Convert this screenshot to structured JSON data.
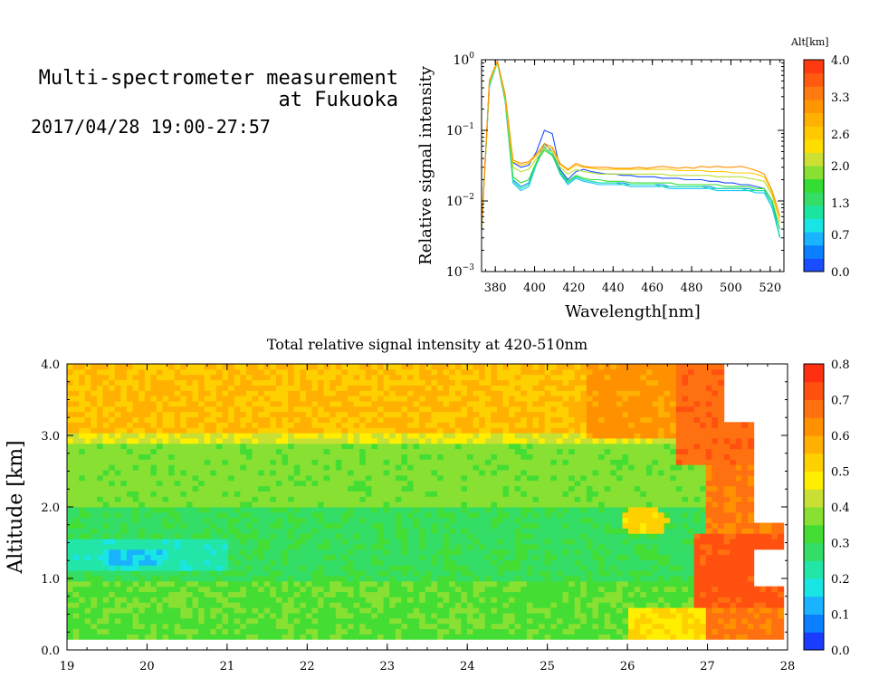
{
  "header": {
    "title_line1": "Multi-spectrometer measurement",
    "title_line2": "at Fukuoka",
    "datetime": "2017/04/28 19:00-27:57"
  },
  "colors": {
    "colorbar_top": [
      "#1a4dff",
      "#0a7fff",
      "#19b3ff",
      "#19e5e5",
      "#1ae5a0",
      "#33dd66",
      "#33dd33",
      "#88e033",
      "#cce033",
      "#ffdd00",
      "#ffc800",
      "#ffb000",
      "#ff9500",
      "#ff7a10",
      "#ff5a10",
      "#ff3a10"
    ],
    "heatmap_scale": [
      "#1a3cff",
      "#0a7fff",
      "#19b3ff",
      "#1ae5e5",
      "#22e5a8",
      "#33dd66",
      "#44dd33",
      "#88e033",
      "#c8e033",
      "#ffee00",
      "#ffd000",
      "#ffb000",
      "#ff9000",
      "#ff7010",
      "#ff5010",
      "#ff3010"
    ]
  },
  "chart_data": [
    {
      "type": "line",
      "xlabel": "Wavelength[nm]",
      "ylabel": "Relative signal intensity",
      "xlim": [
        373,
        527
      ],
      "ylim_log10": [
        -3,
        0
      ],
      "yscale": "log",
      "xticks": [
        380,
        400,
        420,
        440,
        460,
        480,
        500,
        520
      ],
      "xtick_labels": [
        "380",
        "400",
        "420",
        "440",
        "460",
        "480",
        "500",
        "520"
      ],
      "yticks_log10": [
        -3,
        -2,
        -1,
        0
      ],
      "ytick_labels": [
        {
          "base": "10",
          "exp": "−3"
        },
        {
          "base": "10",
          "exp": "−2"
        },
        {
          "base": "10",
          "exp": "−1"
        },
        {
          "base": "10",
          "exp": "0"
        }
      ],
      "colorbar": {
        "label": "Alt[km]",
        "range": [
          0.0,
          4.0
        ],
        "tick_labels": [
          "0.0",
          "0.7",
          "1.3",
          "2.0",
          "2.6",
          "3.3",
          "4.0"
        ],
        "tick_values": [
          0.0,
          0.7,
          1.3,
          2.0,
          2.6,
          3.3,
          4.0
        ]
      },
      "x": [
        373,
        377,
        381,
        385,
        389,
        393,
        397,
        401,
        405,
        409,
        413,
        417,
        421,
        425,
        429,
        433,
        437,
        441,
        445,
        449,
        453,
        457,
        461,
        465,
        469,
        473,
        477,
        481,
        485,
        489,
        493,
        497,
        501,
        505,
        509,
        513,
        517,
        521,
        525
      ],
      "series": [
        {
          "alt": 0.2,
          "color": "#1a4dff",
          "values": [
            0.004,
            0.5,
            0.95,
            0.3,
            0.035,
            0.03,
            0.032,
            0.05,
            0.1,
            0.09,
            0.028,
            0.02,
            0.026,
            0.028,
            0.026,
            0.025,
            0.024,
            0.024,
            0.023,
            0.023,
            0.022,
            0.022,
            0.022,
            0.021,
            0.021,
            0.021,
            0.02,
            0.02,
            0.02,
            0.019,
            0.019,
            0.018,
            0.018,
            0.017,
            0.017,
            0.016,
            0.015,
            0.01,
            0.003
          ]
        },
        {
          "alt": 0.6,
          "color": "#0a8aff",
          "values": [
            0.004,
            0.45,
            0.95,
            0.28,
            0.02,
            0.016,
            0.018,
            0.035,
            0.065,
            0.05,
            0.026,
            0.018,
            0.022,
            0.02,
            0.019,
            0.018,
            0.018,
            0.018,
            0.018,
            0.017,
            0.017,
            0.017,
            0.017,
            0.017,
            0.016,
            0.016,
            0.016,
            0.016,
            0.016,
            0.016,
            0.015,
            0.015,
            0.015,
            0.015,
            0.015,
            0.014,
            0.014,
            0.009,
            0.003
          ]
        },
        {
          "alt": 1.0,
          "color": "#19c5ff",
          "values": [
            0.004,
            0.42,
            0.92,
            0.26,
            0.018,
            0.014,
            0.016,
            0.033,
            0.058,
            0.045,
            0.024,
            0.017,
            0.021,
            0.019,
            0.018,
            0.017,
            0.017,
            0.017,
            0.017,
            0.016,
            0.016,
            0.016,
            0.016,
            0.016,
            0.015,
            0.015,
            0.015,
            0.015,
            0.015,
            0.015,
            0.014,
            0.014,
            0.014,
            0.014,
            0.014,
            0.013,
            0.013,
            0.008,
            0.003
          ]
        },
        {
          "alt": 1.5,
          "color": "#1ae5a0",
          "values": [
            0.004,
            0.44,
            0.92,
            0.27,
            0.019,
            0.015,
            0.017,
            0.034,
            0.055,
            0.046,
            0.025,
            0.018,
            0.022,
            0.02,
            0.019,
            0.018,
            0.018,
            0.018,
            0.017,
            0.017,
            0.017,
            0.017,
            0.017,
            0.016,
            0.016,
            0.016,
            0.016,
            0.016,
            0.016,
            0.015,
            0.015,
            0.015,
            0.015,
            0.015,
            0.014,
            0.014,
            0.014,
            0.009,
            0.003
          ]
        },
        {
          "alt": 2.0,
          "color": "#33dd33",
          "values": [
            0.004,
            0.46,
            0.93,
            0.28,
            0.022,
            0.018,
            0.02,
            0.036,
            0.052,
            0.044,
            0.026,
            0.019,
            0.023,
            0.021,
            0.02,
            0.02,
            0.019,
            0.019,
            0.019,
            0.018,
            0.018,
            0.018,
            0.018,
            0.018,
            0.018,
            0.017,
            0.017,
            0.017,
            0.017,
            0.017,
            0.017,
            0.016,
            0.016,
            0.016,
            0.016,
            0.015,
            0.015,
            0.01,
            0.004
          ]
        },
        {
          "alt": 2.6,
          "color": "#b8e033",
          "values": [
            0.004,
            0.48,
            0.94,
            0.3,
            0.03,
            0.026,
            0.028,
            0.04,
            0.055,
            0.05,
            0.03,
            0.024,
            0.028,
            0.026,
            0.025,
            0.024,
            0.024,
            0.024,
            0.024,
            0.024,
            0.024,
            0.024,
            0.024,
            0.024,
            0.023,
            0.023,
            0.023,
            0.023,
            0.023,
            0.023,
            0.022,
            0.022,
            0.022,
            0.022,
            0.021,
            0.02,
            0.019,
            0.012,
            0.005
          ]
        },
        {
          "alt": 3.0,
          "color": "#ffc800",
          "values": [
            0.004,
            0.5,
            0.95,
            0.32,
            0.036,
            0.032,
            0.034,
            0.044,
            0.06,
            0.055,
            0.033,
            0.027,
            0.032,
            0.03,
            0.029,
            0.028,
            0.028,
            0.028,
            0.028,
            0.028,
            0.028,
            0.028,
            0.028,
            0.028,
            0.028,
            0.027,
            0.027,
            0.027,
            0.027,
            0.026,
            0.026,
            0.026,
            0.025,
            0.025,
            0.025,
            0.024,
            0.022,
            0.013,
            0.005
          ]
        },
        {
          "alt": 3.6,
          "color": "#ff9000",
          "values": [
            0.004,
            0.52,
            0.96,
            0.33,
            0.038,
            0.034,
            0.036,
            0.046,
            0.065,
            0.058,
            0.034,
            0.028,
            0.034,
            0.031,
            0.03,
            0.03,
            0.03,
            0.029,
            0.029,
            0.029,
            0.03,
            0.029,
            0.03,
            0.031,
            0.03,
            0.029,
            0.03,
            0.029,
            0.031,
            0.03,
            0.031,
            0.03,
            0.03,
            0.031,
            0.029,
            0.027,
            0.024,
            0.014,
            0.006
          ]
        }
      ]
    },
    {
      "type": "heatmap",
      "title": "Total relative signal intensity at 420-510nm",
      "xlabel": "",
      "ylabel": "Altitude [km]",
      "xlim": [
        19,
        28
      ],
      "ylim": [
        0.0,
        4.0
      ],
      "xtick_labels": [
        "19",
        "20",
        "21",
        "22",
        "23",
        "24",
        "25",
        "26",
        "27",
        "28"
      ],
      "xticks": [
        19,
        20,
        21,
        22,
        23,
        24,
        25,
        26,
        27,
        28
      ],
      "ytick_labels": [
        "0.0",
        "1.0",
        "2.0",
        "3.0",
        "4.0"
      ],
      "yticks": [
        0,
        1,
        2,
        3,
        4
      ],
      "colorbar": {
        "range": [
          0.0,
          0.8
        ],
        "tick_labels": [
          "0.0",
          "0.1",
          "0.2",
          "0.3",
          "0.4",
          "0.5",
          "0.6",
          "0.7",
          "0.8"
        ],
        "tick_values": [
          0,
          0.1,
          0.2,
          0.3,
          0.4,
          0.5,
          0.6,
          0.7,
          0.8
        ]
      },
      "data_time_range": [
        19.0,
        27.95
      ],
      "data_alt_range": [
        0.15,
        4.0
      ],
      "description_layers": [
        {
          "alt_range": [
            3.0,
            4.0
          ],
          "value": 0.55
        },
        {
          "alt_range": [
            2.0,
            3.0
          ],
          "value": 0.38
        },
        {
          "alt_range": [
            1.0,
            2.0
          ],
          "value": 0.3
        },
        {
          "alt_range": [
            0.15,
            1.0
          ],
          "value": 0.35
        }
      ]
    }
  ]
}
